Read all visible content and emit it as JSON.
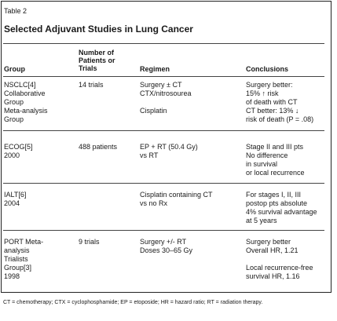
{
  "table_label": "Table 2",
  "title": "Selected Adjuvant Studies in Lung Cancer",
  "headers": {
    "group": "Group",
    "patients": [
      "Number of",
      "Patients or",
      "Trials"
    ],
    "regimen": "Regimen",
    "conclusions": "Conclusions"
  },
  "rows": [
    {
      "group": [
        "NSCLC[4]",
        "Collaborative",
        "Group",
        "Meta-analysis",
        "Group"
      ],
      "patients": [
        "14 trials"
      ],
      "regimen": [
        "Surgery ± CT",
        "CTX/nitrosourea",
        "",
        "Cisplatin"
      ],
      "conclusions": [
        "Surgery better:",
        "15% ↑ risk",
        "of death with CT",
        "CT better: 13% ↓",
        "risk of death (P = .08)"
      ]
    },
    {
      "group": [
        "ECOG[5]",
        "2000"
      ],
      "patients": [
        "488 patients"
      ],
      "regimen": [
        "EP + RT (50.4 Gy)",
        "vs RT"
      ],
      "conclusions": [
        "Stage II and III pts",
        "No difference",
        "in survival",
        "or local recurrence"
      ]
    },
    {
      "group": [
        "IALT[6]",
        "2004"
      ],
      "patients": [
        ""
      ],
      "regimen": [
        "Cisplatin containing CT",
        "vs no Rx"
      ],
      "conclusions": [
        "For stages I, II, III",
        "postop pts absolute",
        "4% survival advantage",
        "at 5 years"
      ]
    },
    {
      "group": [
        "PORT Meta-",
        "analysis",
        "Trialists",
        "Group[3]",
        "1998"
      ],
      "patients": [
        "9 trials"
      ],
      "regimen": [
        "Surgery +/- RT",
        "Doses 30–65 Gy"
      ],
      "conclusions": [
        "Surgery better",
        "Overall HR, 1.21",
        "",
        "Local recurrence-free",
        "survival HR, 1.16"
      ]
    }
  ],
  "footnote": "CT = chemotherapy; CTX = cyclophosphamide; EP = etoposide; HR = hazard ratio; RT = radiation therapy."
}
